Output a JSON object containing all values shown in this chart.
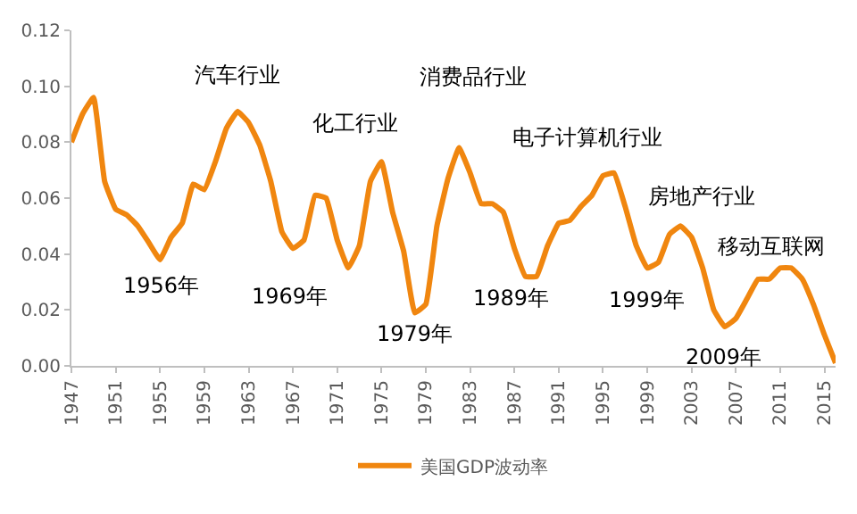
{
  "chart_data": {
    "type": "line",
    "x": [
      1947,
      1948,
      1949,
      1950,
      1951,
      1952,
      1953,
      1954,
      1955,
      1956,
      1957,
      1958,
      1959,
      1960,
      1961,
      1962,
      1963,
      1964,
      1965,
      1966,
      1967,
      1968,
      1969,
      1970,
      1971,
      1972,
      1973,
      1974,
      1975,
      1976,
      1977,
      1978,
      1979,
      1980,
      1981,
      1982,
      1983,
      1984,
      1985,
      1986,
      1987,
      1988,
      1989,
      1990,
      1991,
      1992,
      1993,
      1994,
      1995,
      1996,
      1997,
      1998,
      1999,
      2000,
      2001,
      2002,
      2003,
      2004,
      2005,
      2006,
      2007,
      2008,
      2009,
      2010,
      2011,
      2012,
      2013,
      2014,
      2015,
      2016
    ],
    "series": [
      {
        "name": "美国GDP波动率",
        "color": "#f0860f",
        "values": [
          0.08,
          0.09,
          0.096,
          0.066,
          0.056,
          0.054,
          0.05,
          0.044,
          0.038,
          0.046,
          0.051,
          0.065,
          0.063,
          0.073,
          0.085,
          0.091,
          0.087,
          0.079,
          0.066,
          0.048,
          0.042,
          0.045,
          0.061,
          0.06,
          0.045,
          0.035,
          0.043,
          0.066,
          0.073,
          0.055,
          0.041,
          0.019,
          0.022,
          0.05,
          0.067,
          0.078,
          0.069,
          0.058,
          0.058,
          0.055,
          0.042,
          0.032,
          0.032,
          0.043,
          0.051,
          0.052,
          0.057,
          0.061,
          0.068,
          0.069,
          0.057,
          0.043,
          0.035,
          0.037,
          0.047,
          0.05,
          0.046,
          0.035,
          0.02,
          0.014,
          0.017,
          0.024,
          0.031,
          0.031,
          0.035,
          0.035,
          0.031,
          0.022,
          0.011,
          0.001
        ]
      }
    ],
    "xlim": [
      1947,
      2016
    ],
    "xticks": [
      1947,
      1951,
      1955,
      1959,
      1963,
      1967,
      1971,
      1975,
      1979,
      1983,
      1987,
      1991,
      1995,
      1999,
      2003,
      2007,
      2011,
      2015
    ],
    "ylim": [
      0,
      0.12
    ],
    "yticks": [
      {
        "value": 0,
        "label": "0.00"
      },
      {
        "value": 0.02,
        "label": "0.02"
      },
      {
        "value": 0.04,
        "label": "0.04"
      },
      {
        "value": 0.06,
        "label": "0.06"
      },
      {
        "value": 0.08,
        "label": "0.08"
      },
      {
        "value": 0.1,
        "label": "0.10"
      },
      {
        "value": 0.12,
        "label": "0.12"
      }
    ],
    "legend": "bottom",
    "marker": "none",
    "line_style": "solid",
    "annotations": [
      {
        "text": "汽车行业",
        "x": 1962,
        "y": 0.091
      },
      {
        "text": "化工行业",
        "x": 1975,
        "y": 0.073
      },
      {
        "text": "消费品行业",
        "x": 1982,
        "y": 0.078
      },
      {
        "text": "电子计算机行业",
        "x": 1996,
        "y": 0.069
      },
      {
        "text": "房地产行业",
        "x": 2002,
        "y": 0.05
      },
      {
        "text": "移动互联网",
        "x": 2011,
        "y": 0.035
      },
      {
        "text": "1956年",
        "x": 1955,
        "y": 0.038
      },
      {
        "text": "1969年",
        "x": 1967,
        "y": 0.042
      },
      {
        "text": "1979年",
        "x": 1978,
        "y": 0.019
      },
      {
        "text": "1989年",
        "x": 1988,
        "y": 0.032
      },
      {
        "text": "1999年",
        "x": 1999,
        "y": 0.035
      },
      {
        "text": "2009年",
        "x": 2006,
        "y": 0.014
      }
    ]
  }
}
